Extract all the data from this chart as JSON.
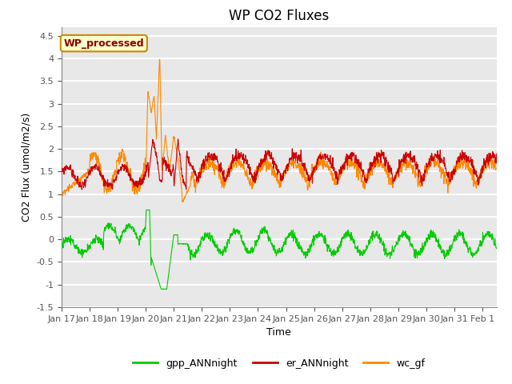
{
  "title": "WP CO2 Fluxes",
  "xlabel": "Time",
  "ylabel": "CO2 Flux (umol/m2/s)",
  "ylim": [
    -1.5,
    4.7
  ],
  "xlim_days": [
    0,
    15.5
  ],
  "tick_labels": [
    "Jan 17",
    "Jan 18",
    "Jan 19",
    "Jan 20",
    "Jan 21",
    "Jan 22",
    "Jan 23",
    "Jan 24",
    "Jan 25",
    "Jan 26",
    "Jan 27",
    "Jan 28",
    "Jan 29",
    "Jan 30",
    "Jan 31",
    "Feb 1"
  ],
  "yticks": [
    -1.5,
    -1.0,
    -0.5,
    0.0,
    0.5,
    1.0,
    1.5,
    2.0,
    2.5,
    3.0,
    3.5,
    4.0,
    4.5
  ],
  "legend_labels": [
    "gpp_ANNnight",
    "er_ANNnight",
    "wc_gf"
  ],
  "colors": {
    "gpp": "#00cc00",
    "er": "#cc0000",
    "wc": "#ff8800"
  },
  "annotation_text": "WP_processed",
  "annotation_color": "#8b0000",
  "annotation_bg": "#ffffcc",
  "fig_bg": "#ffffff",
  "plot_bg": "#e8e8e8",
  "grid_color": "#ffffff",
  "title_fontsize": 12,
  "label_fontsize": 9,
  "tick_fontsize": 8,
  "legend_fontsize": 9,
  "line_width": 0.8
}
